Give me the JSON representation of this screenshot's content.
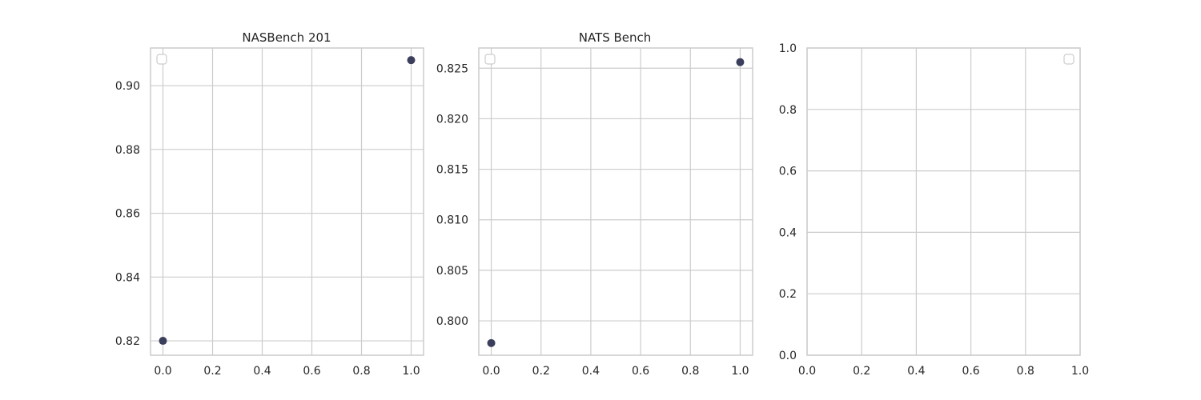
{
  "colors": {
    "grid": "#cccccc",
    "spine": "#cccccc",
    "marker": "#3b3f5c",
    "text": "#262626",
    "legend_border": "#cccccc"
  },
  "chart_data": [
    {
      "type": "scatter",
      "title": "NASBench 201",
      "xlabel": "",
      "ylabel": "",
      "xlim": [
        -0.05,
        1.05
      ],
      "ylim": [
        0.8155,
        0.9118
      ],
      "xticks": [
        0.0,
        0.2,
        0.4,
        0.6,
        0.8,
        1.0
      ],
      "xtick_labels": [
        "0.0",
        "0.2",
        "0.4",
        "0.6",
        "0.8",
        "1.0"
      ],
      "yticks": [
        0.82,
        0.84,
        0.86,
        0.88,
        0.9
      ],
      "ytick_labels": [
        "0.82",
        "0.84",
        "0.86",
        "0.88",
        "0.90"
      ],
      "grid": true,
      "legend": "top-left",
      "points": [
        {
          "x": 0.0,
          "y": 0.82
        },
        {
          "x": 1.0,
          "y": 0.908
        }
      ]
    },
    {
      "type": "scatter",
      "title": "NATS Bench",
      "xlabel": "",
      "ylabel": "",
      "xlim": [
        -0.05,
        1.05
      ],
      "ylim": [
        0.7966,
        0.827
      ],
      "xticks": [
        0.0,
        0.2,
        0.4,
        0.6,
        0.8,
        1.0
      ],
      "xtick_labels": [
        "0.0",
        "0.2",
        "0.4",
        "0.6",
        "0.8",
        "1.0"
      ],
      "yticks": [
        0.8,
        0.805,
        0.81,
        0.815,
        0.82,
        0.825
      ],
      "ytick_labels": [
        "0.800",
        "0.805",
        "0.810",
        "0.815",
        "0.820",
        "0.825"
      ],
      "grid": true,
      "legend": "top-left",
      "points": [
        {
          "x": 0.0,
          "y": 0.7978
        },
        {
          "x": 1.0,
          "y": 0.8256
        }
      ]
    },
    {
      "type": "scatter",
      "title": "",
      "xlabel": "",
      "ylabel": "",
      "xlim": [
        0.0,
        1.0
      ],
      "ylim": [
        0.0,
        1.0
      ],
      "xticks": [
        0.0,
        0.2,
        0.4,
        0.6,
        0.8,
        1.0
      ],
      "xtick_labels": [
        "0.0",
        "0.2",
        "0.4",
        "0.6",
        "0.8",
        "1.0"
      ],
      "yticks": [
        0.0,
        0.2,
        0.4,
        0.6,
        0.8,
        1.0
      ],
      "ytick_labels": [
        "0.0",
        "0.2",
        "0.4",
        "0.6",
        "0.8",
        "1.0"
      ],
      "grid": true,
      "legend": "top-right",
      "points": []
    }
  ]
}
